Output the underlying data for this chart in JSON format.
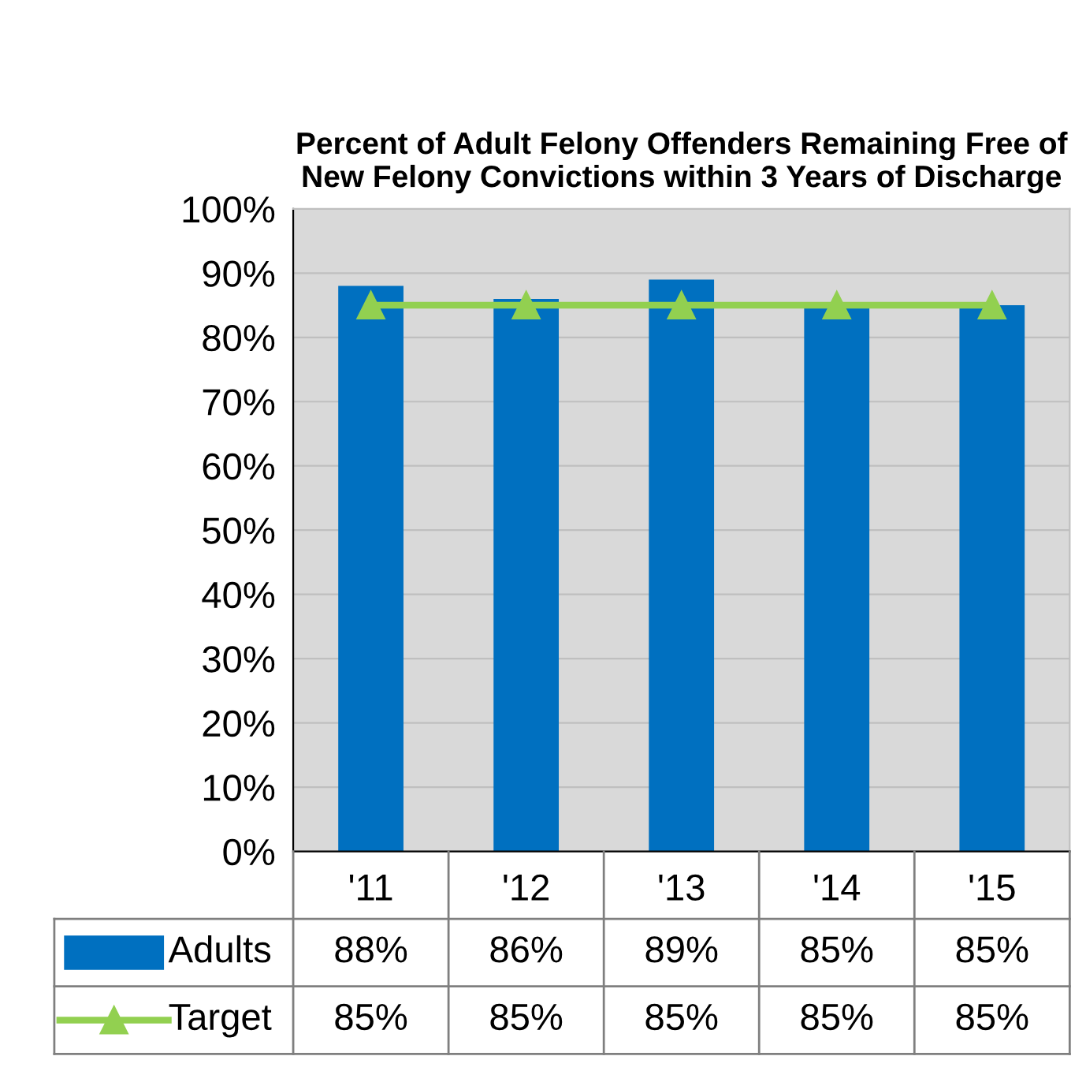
{
  "chart_data": {
    "type": "bar",
    "title": "Percent of Adult Felony Offenders Remaining Free of New Felony Convictions within 3 Years of Discharge",
    "categories": [
      "'11",
      "'12",
      "'13",
      "'14",
      "'15"
    ],
    "series": [
      {
        "name": "Adults",
        "color": "#0070c0",
        "values": [
          88,
          86,
          89,
          85,
          85
        ],
        "value_labels": [
          "88%",
          "86%",
          "89%",
          "85%",
          "85%"
        ]
      },
      {
        "name": "Target",
        "type": "line",
        "color": "#92d050",
        "marker": "triangle",
        "values": [
          85,
          85,
          85,
          85,
          85
        ],
        "value_labels": [
          "85%",
          "85%",
          "85%",
          "85%",
          "85%"
        ]
      }
    ],
    "ylim": [
      0,
      100
    ],
    "yticks": [
      {
        "value": 0,
        "label": "0%"
      },
      {
        "value": 10,
        "label": "10%"
      },
      {
        "value": 20,
        "label": "20%"
      },
      {
        "value": 30,
        "label": "30%"
      },
      {
        "value": 40,
        "label": "40%"
      },
      {
        "value": 50,
        "label": "50%"
      },
      {
        "value": 60,
        "label": "60%"
      },
      {
        "value": 70,
        "label": "70%"
      },
      {
        "value": 80,
        "label": "80%"
      },
      {
        "value": 90,
        "label": "90%"
      },
      {
        "value": 100,
        "label": "100%"
      }
    ],
    "grid": "y",
    "legend": "bottom left"
  }
}
